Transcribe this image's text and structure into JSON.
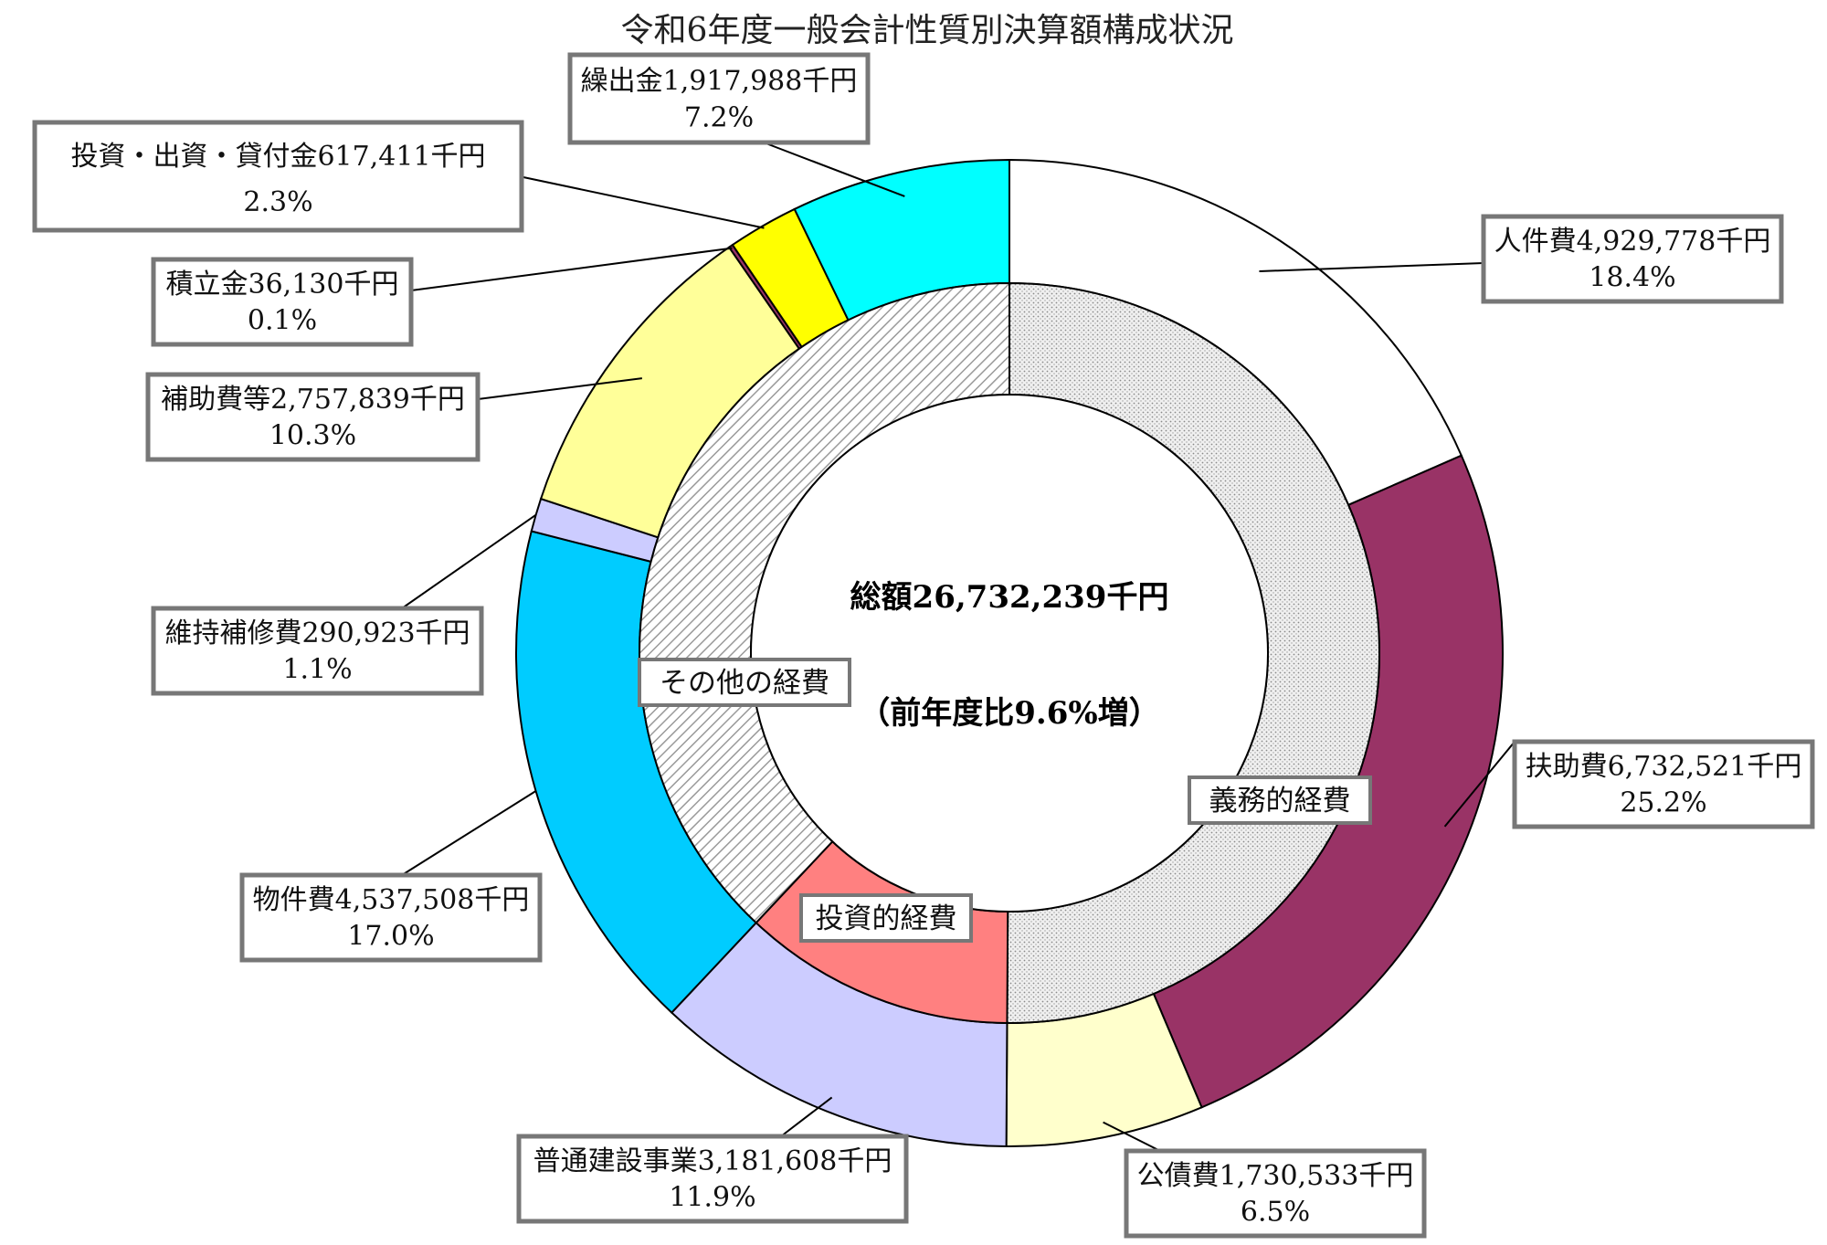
{
  "chart_data": {
    "type": "pie",
    "title": "令和6年度一般会計性質別決算額構成状況",
    "center": {
      "total": "総額26,732,239千円",
      "change": "（前年度比9.6%増）"
    },
    "outer_series": [
      {
        "name": "人件費",
        "amount": "4,929,778千円",
        "value": 4929778,
        "percent": "18.4%",
        "color": "#ffffff"
      },
      {
        "name": "扶助費",
        "amount": "6,732,521千円",
        "value": 6732521,
        "percent": "25.2%",
        "color": "#993366"
      },
      {
        "name": "公債費",
        "amount": "1,730,533千円",
        "value": 1730533,
        "percent": "6.5%",
        "color": "#ffffcc"
      },
      {
        "name": "普通建設事業",
        "amount": "3,181,608千円",
        "value": 3181608,
        "percent": "11.9%",
        "color": "#ccccff"
      },
      {
        "name": "物件費",
        "amount": "4,537,508千円",
        "value": 4537508,
        "percent": "17.0%",
        "color": "#00ccff"
      },
      {
        "name": "維持補修費",
        "amount": "290,923千円",
        "value": 290923,
        "percent": "1.1%",
        "color": "#ccccff"
      },
      {
        "name": "補助費等",
        "amount": "2,757,839千円",
        "value": 2757839,
        "percent": "10.3%",
        "color": "#ffff99"
      },
      {
        "name": "積立金",
        "amount": "36,130千円",
        "value": 36130,
        "percent": "0.1%",
        "color": "#993366"
      },
      {
        "name": "投資・出資・貸付金",
        "amount": "617,411千円",
        "value": 617411,
        "percent": "2.3%",
        "color": "#ffff00"
      },
      {
        "name": "繰出金",
        "amount": "1,917,988千円",
        "value": 1917988,
        "percent": "7.2%",
        "color": "#00ffff"
      }
    ],
    "inner_series": [
      {
        "name": "義務的経費",
        "value": 13392832,
        "pattern": "dots"
      },
      {
        "name": "投資的経費",
        "value": 3181608,
        "color": "#ff8080"
      },
      {
        "name": "その他の経費",
        "value": 10157799,
        "pattern": "hatch"
      }
    ]
  }
}
